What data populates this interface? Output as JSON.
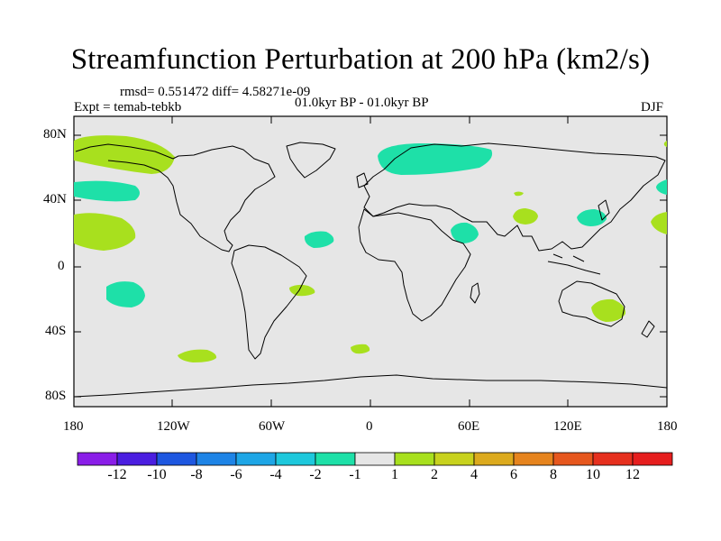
{
  "title": "Streamfunction Perturbation at 200 hPa (km2/s)",
  "stats": "rmsd= 0.551472 diff= 4.58271e-09",
  "experiment": "Expt = temab-tebkb",
  "period": "01.0kyr BP - 01.0kyr BP",
  "season": "DJF",
  "lat_labels": [
    "80N",
    "40N",
    "0",
    "40S",
    "80S"
  ],
  "lon_labels": [
    "180",
    "120W",
    "60W",
    "0",
    "60E",
    "120E",
    "180"
  ],
  "colorbar": {
    "labels": [
      "-12",
      "-10",
      "-8",
      "-6",
      "-4",
      "-2",
      "-1",
      "1",
      "2",
      "4",
      "6",
      "8",
      "10",
      "12"
    ],
    "colors": [
      "#8a1ee8",
      "#4b1ee0",
      "#1e57e0",
      "#1e84e6",
      "#1ea6e6",
      "#1ec8dc",
      "#1ee0a8",
      "#e6e6e6",
      "#a8e01e",
      "#c8d21e",
      "#dcaa1e",
      "#e6841e",
      "#e6571e",
      "#e6301e",
      "#e61e1e"
    ]
  },
  "colors": {
    "ocean": "#e6e6e6",
    "positive_1_2": "#a8e01e",
    "negative_2_1": "#1ee0a8"
  }
}
